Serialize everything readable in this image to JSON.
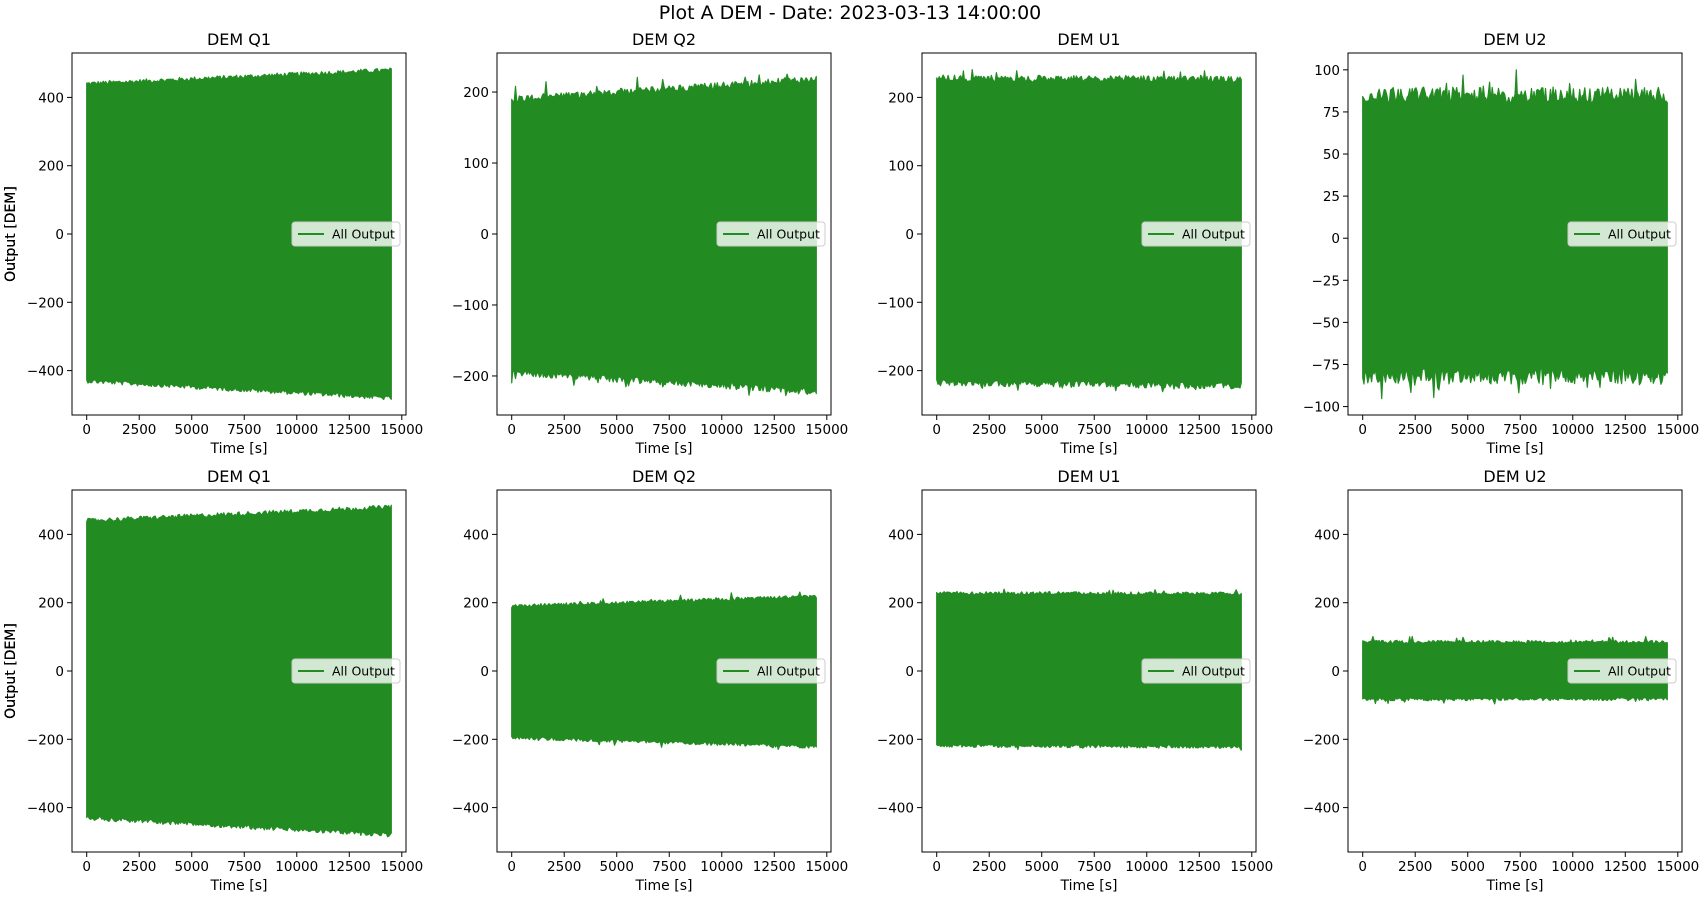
{
  "figure": {
    "suptitle": "Plot A DEM - Date: 2023-03-13 14:00:00"
  },
  "style": {
    "series_color": "#228b22",
    "axes_color": "#000000",
    "legend_bg": "#ffffff"
  },
  "chart_data": [
    {
      "type": "area",
      "title": "DEM Q1",
      "xlabel": "Time [s]",
      "ylabel": "Output [DEM]",
      "xlim": [
        -700,
        15200
      ],
      "ylim": [
        -530,
        530
      ],
      "xticks": [
        0,
        2500,
        5000,
        7500,
        10000,
        12500,
        15000
      ],
      "yticks": [
        -400,
        -200,
        0,
        200,
        400
      ],
      "yticklabels": [
        "−400",
        "−200",
        "0",
        "200",
        "400"
      ],
      "legend": {
        "label": "All Output",
        "position": "center-right"
      },
      "series": [
        {
          "name": "All Output",
          "x": [
            0,
            14500
          ],
          "upper": [
            440,
            480
          ],
          "lower": [
            -430,
            -480
          ],
          "noise": 8,
          "spikes": false
        }
      ]
    },
    {
      "type": "area",
      "title": "DEM Q2",
      "xlabel": "Time [s]",
      "ylabel": "Output [DEM]",
      "xlim": [
        -700,
        15200
      ],
      "ylim": [
        -255,
        255
      ],
      "xticks": [
        0,
        2500,
        5000,
        7500,
        10000,
        12500,
        15000
      ],
      "yticks": [
        -200,
        -100,
        0,
        100,
        200
      ],
      "yticklabels": [
        "−200",
        "−100",
        "0",
        "100",
        "200"
      ],
      "legend": {
        "label": "All Output",
        "position": "center-right"
      },
      "series": [
        {
          "name": "All Output",
          "x": [
            0,
            14500
          ],
          "upper": [
            190,
            218
          ],
          "lower": [
            -195,
            -222
          ],
          "noise": 6,
          "spikes": true,
          "spike_max": 240
        }
      ]
    },
    {
      "type": "area",
      "title": "DEM U1",
      "xlabel": "Time [s]",
      "ylabel": "Output [DEM]",
      "xlim": [
        -700,
        15200
      ],
      "ylim": [
        -265,
        265
      ],
      "xticks": [
        0,
        2500,
        5000,
        7500,
        10000,
        12500,
        15000
      ],
      "yticks": [
        -200,
        -100,
        0,
        100,
        200
      ],
      "yticklabels": [
        "−200",
        "−100",
        "0",
        "100",
        "200"
      ],
      "legend": {
        "label": "All Output",
        "position": "center-right"
      },
      "series": [
        {
          "name": "All Output",
          "x": [
            0,
            14500
          ],
          "upper": [
            228,
            226
          ],
          "lower": [
            -218,
            -222
          ],
          "noise": 6,
          "spikes": true,
          "spike_max": 240
        }
      ]
    },
    {
      "type": "area",
      "title": "DEM U2",
      "xlabel": "Time [s]",
      "ylabel": "Output [DEM]",
      "xlim": [
        -700,
        15200
      ],
      "ylim": [
        -105,
        110
      ],
      "xticks": [
        0,
        2500,
        5000,
        7500,
        10000,
        12500,
        15000
      ],
      "yticks": [
        -100,
        -75,
        -50,
        -25,
        0,
        25,
        50,
        75,
        100
      ],
      "yticklabels": [
        "−100",
        "−75",
        "−50",
        "−25",
        "0",
        "25",
        "50",
        "75",
        "100"
      ],
      "legend": {
        "label": "All Output",
        "position": "center-right"
      },
      "series": [
        {
          "name": "All Output",
          "x": [
            0,
            14500
          ],
          "upper": [
            85,
            85
          ],
          "lower": [
            -82,
            -82
          ],
          "noise": 6,
          "spikes": true,
          "spike_max": 104
        }
      ]
    },
    {
      "type": "area",
      "title": "DEM Q1",
      "xlabel": "Time [s]",
      "ylabel": "Output [DEM]",
      "xlim": [
        -700,
        15200
      ],
      "ylim": [
        -530,
        530
      ],
      "xticks": [
        0,
        2500,
        5000,
        7500,
        10000,
        12500,
        15000
      ],
      "yticks": [
        -400,
        -200,
        0,
        200,
        400
      ],
      "yticklabels": [
        "−400",
        "−200",
        "0",
        "200",
        "400"
      ],
      "legend": {
        "label": "All Output",
        "position": "center-right"
      },
      "series": [
        {
          "name": "All Output",
          "x": [
            0,
            14500
          ],
          "upper": [
            440,
            480
          ],
          "lower": [
            -430,
            -480
          ],
          "noise": 8,
          "spikes": false
        }
      ]
    },
    {
      "type": "area",
      "title": "DEM Q2",
      "xlabel": "Time [s]",
      "ylabel": "Output [DEM]",
      "xlim": [
        -700,
        15200
      ],
      "ylim": [
        -530,
        530
      ],
      "xticks": [
        0,
        2500,
        5000,
        7500,
        10000,
        12500,
        15000
      ],
      "yticks": [
        -400,
        -200,
        0,
        200,
        400
      ],
      "yticklabels": [
        "−400",
        "−200",
        "0",
        "200",
        "400"
      ],
      "legend": {
        "label": "All Output",
        "position": "center-right"
      },
      "series": [
        {
          "name": "All Output",
          "x": [
            0,
            14500
          ],
          "upper": [
            190,
            218
          ],
          "lower": [
            -195,
            -222
          ],
          "noise": 6,
          "spikes": true,
          "spike_max": 240
        }
      ]
    },
    {
      "type": "area",
      "title": "DEM U1",
      "xlabel": "Time [s]",
      "ylabel": "Output [DEM]",
      "xlim": [
        -700,
        15200
      ],
      "ylim": [
        -530,
        530
      ],
      "xticks": [
        0,
        2500,
        5000,
        7500,
        10000,
        12500,
        15000
      ],
      "yticks": [
        -400,
        -200,
        0,
        200,
        400
      ],
      "yticklabels": [
        "−400",
        "−200",
        "0",
        "200",
        "400"
      ],
      "legend": {
        "label": "All Output",
        "position": "center-right"
      },
      "series": [
        {
          "name": "All Output",
          "x": [
            0,
            14500
          ],
          "upper": [
            228,
            226
          ],
          "lower": [
            -218,
            -222
          ],
          "noise": 6,
          "spikes": true,
          "spike_max": 240
        }
      ]
    },
    {
      "type": "area",
      "title": "DEM U2",
      "xlabel": "Time [s]",
      "ylabel": "Output [DEM]",
      "xlim": [
        -700,
        15200
      ],
      "ylim": [
        -530,
        530
      ],
      "xticks": [
        0,
        2500,
        5000,
        7500,
        10000,
        12500,
        15000
      ],
      "yticks": [
        -400,
        -200,
        0,
        200,
        400
      ],
      "yticklabels": [
        "−400",
        "−200",
        "0",
        "200",
        "400"
      ],
      "legend": {
        "label": "All Output",
        "position": "center-right"
      },
      "series": [
        {
          "name": "All Output",
          "x": [
            0,
            14500
          ],
          "upper": [
            85,
            85
          ],
          "lower": [
            -82,
            -82
          ],
          "noise": 6,
          "spikes": true,
          "spike_max": 104
        }
      ]
    }
  ]
}
